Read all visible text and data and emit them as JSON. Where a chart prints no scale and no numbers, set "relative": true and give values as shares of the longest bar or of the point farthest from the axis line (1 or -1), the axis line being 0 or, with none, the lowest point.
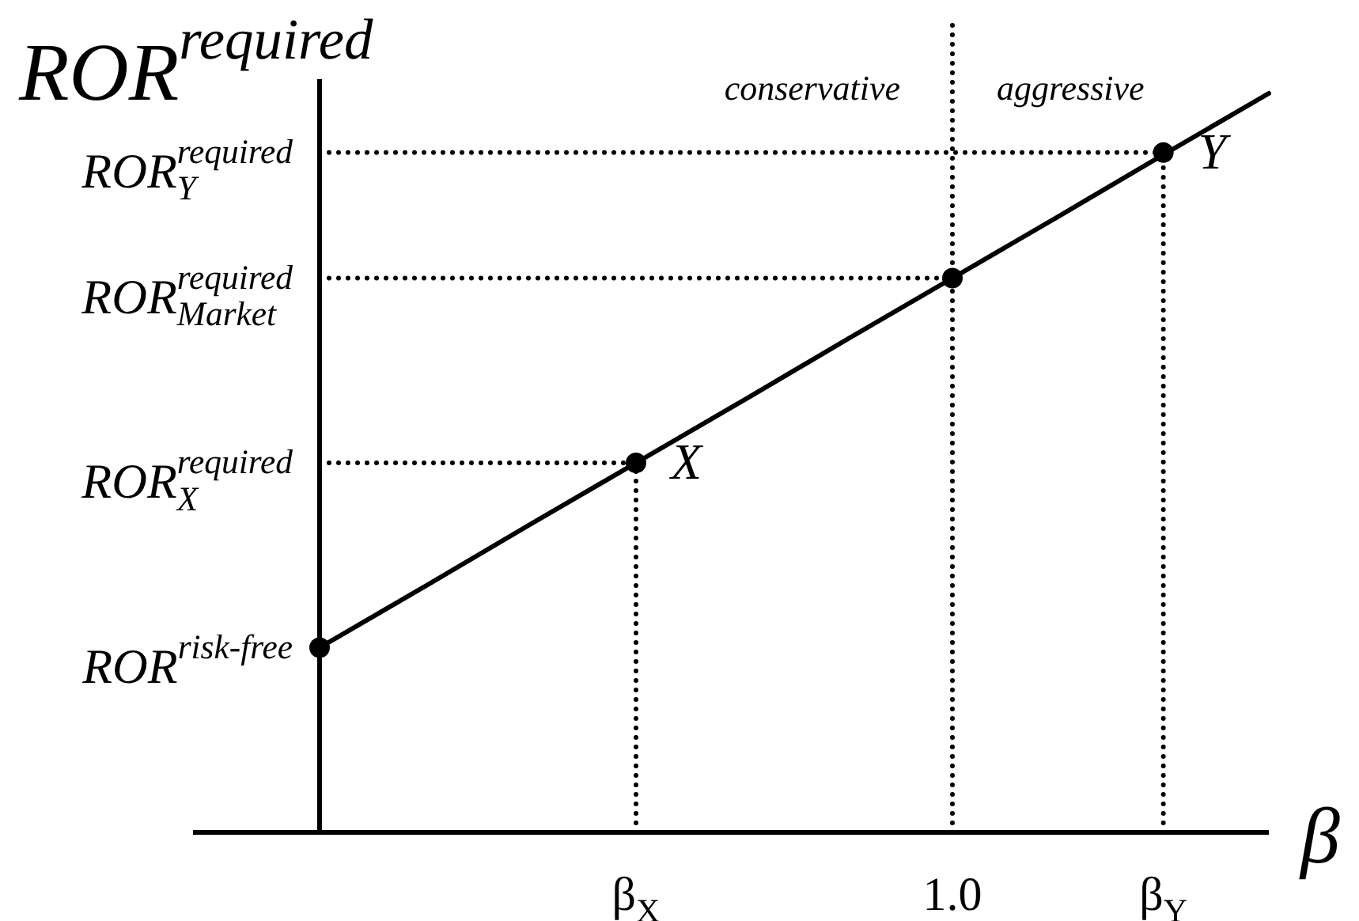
{
  "chart_data": {
    "type": "line",
    "ylabel": "ROR$^{required}$",
    "xlabel": "β",
    "relative": true,
    "categories": [
      null,
      null,
      null,
      "β$_{X}$",
      null,
      null,
      "1.0",
      null,
      "β$_{Y}$",
      null
    ],
    "series": [
      {
        "values": [
          0.5,
          0.5,
          0.5,
          0.5,
          null,
          null,
          null,
          null,
          null,
          null
        ],
        "color": "#000000",
        "line_style": "dotted"
      },
      {
        "values": [
          0.75,
          0.75,
          0.75,
          0.75,
          0.75,
          0.75,
          0.75,
          null,
          null,
          null
        ],
        "color": "#000000",
        "line_style": "dotted"
      },
      {
        "values": [
          0.92,
          0.92,
          0.92,
          0.92,
          0.92,
          0.92,
          0.92,
          0.92,
          0.92,
          null
        ],
        "color": "#000000",
        "line_style": "dotted"
      },
      {
        "values": [
          0.25,
          0.333,
          0.417,
          0.5,
          0.583,
          0.667,
          0.75,
          0.833,
          0.917,
          1
        ],
        "color": "#000000",
        "line_style": "solid"
      },
      {
        "type": "lollipop",
        "values": [
          null,
          null,
          null,
          0.5,
          null,
          null,
          null,
          null,
          0.92,
          null
        ],
        "color": "#000000",
        "line_style": "dotted",
        "marker": "circle"
      },
      {
        "type": "scatter",
        "values": [
          0.25,
          null,
          null,
          null,
          null,
          null,
          0.75,
          null,
          null,
          null
        ],
        "color": "#000000",
        "marker": "circle"
      }
    ],
    "ref_lines": [
      {
        "axis": "x",
        "value": "1.0",
        "line_style": "dotted",
        "color": "#000000"
      }
    ],
    "annotations": [
      "ROR$_{Y}$$^{required}$",
      "ROR$_{Market}$$^{required}$",
      "ROR$_{X}$$^{required}$",
      "ROR$^{risk-free}$",
      {
        "text": "X",
        "x": "β$_{X}$",
        "y": 0.5
      },
      {
        "text": "Y",
        "x": "β$_{Y}$",
        "y": 0.92
      },
      "conservative",
      "aggressive"
    ]
  }
}
